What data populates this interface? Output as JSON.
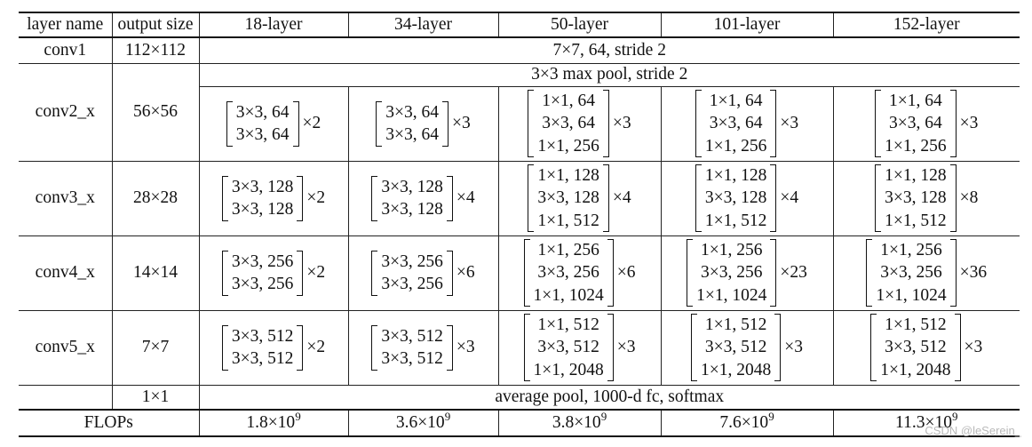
{
  "headers": [
    "layer name",
    "output size",
    "18-layer",
    "34-layer",
    "50-layer",
    "101-layer",
    "152-layer"
  ],
  "conv1": {
    "name": "conv1",
    "output": "112×112",
    "spec": "7×7, 64, stride 2"
  },
  "pool": {
    "spec": "3×3 max pool, stride 2"
  },
  "stages": [
    {
      "name": "conv2_x",
      "output": "56×56",
      "blocks": [
        {
          "lines": [
            "3×3, 64",
            "3×3, 64"
          ],
          "mult": "×2"
        },
        {
          "lines": [
            "3×3, 64",
            "3×3, 64"
          ],
          "mult": "×3"
        },
        {
          "lines": [
            "1×1, 64",
            "3×3, 64",
            "1×1, 256"
          ],
          "mult": "×3"
        },
        {
          "lines": [
            "1×1, 64",
            "3×3, 64",
            "1×1, 256"
          ],
          "mult": "×3"
        },
        {
          "lines": [
            "1×1, 64",
            "3×3, 64",
            "1×1, 256"
          ],
          "mult": "×3"
        }
      ]
    },
    {
      "name": "conv3_x",
      "output": "28×28",
      "blocks": [
        {
          "lines": [
            "3×3, 128",
            "3×3, 128"
          ],
          "mult": "×2"
        },
        {
          "lines": [
            "3×3, 128",
            "3×3, 128"
          ],
          "mult": "×4"
        },
        {
          "lines": [
            "1×1, 128",
            "3×3, 128",
            "1×1, 512"
          ],
          "mult": "×4"
        },
        {
          "lines": [
            "1×1, 128",
            "3×3, 128",
            "1×1, 512"
          ],
          "mult": "×4"
        },
        {
          "lines": [
            "1×1, 128",
            "3×3, 128",
            "1×1, 512"
          ],
          "mult": "×8"
        }
      ]
    },
    {
      "name": "conv4_x",
      "output": "14×14",
      "blocks": [
        {
          "lines": [
            "3×3, 256",
            "3×3, 256"
          ],
          "mult": "×2"
        },
        {
          "lines": [
            "3×3, 256",
            "3×3, 256"
          ],
          "mult": "×6"
        },
        {
          "lines": [
            "1×1, 256",
            "3×3, 256",
            "1×1, 1024"
          ],
          "mult": "×6"
        },
        {
          "lines": [
            "1×1, 256",
            "3×3, 256",
            "1×1, 1024"
          ],
          "mult": "×23"
        },
        {
          "lines": [
            "1×1, 256",
            "3×3, 256",
            "1×1, 1024"
          ],
          "mult": "×36"
        }
      ]
    },
    {
      "name": "conv5_x",
      "output": "7×7",
      "blocks": [
        {
          "lines": [
            "3×3, 512",
            "3×3, 512"
          ],
          "mult": "×2"
        },
        {
          "lines": [
            "3×3, 512",
            "3×3, 512"
          ],
          "mult": "×3"
        },
        {
          "lines": [
            "1×1, 512",
            "3×3, 512",
            "1×1, 2048"
          ],
          "mult": "×3"
        },
        {
          "lines": [
            "1×1, 512",
            "3×3, 512",
            "1×1, 2048"
          ],
          "mult": "×3"
        },
        {
          "lines": [
            "1×1, 512",
            "3×3, 512",
            "1×1, 2048"
          ],
          "mult": "×3"
        }
      ]
    }
  ],
  "avg": {
    "output": "1×1",
    "spec": "average pool, 1000-d fc, softmax"
  },
  "flops": {
    "label": "FLOPs",
    "values": [
      {
        "base": "1.8×10",
        "exp": "9"
      },
      {
        "base": "3.6×10",
        "exp": "9"
      },
      {
        "base": "3.8×10",
        "exp": "9"
      },
      {
        "base": "7.6×10",
        "exp": "9"
      },
      {
        "base": "11.3×10",
        "exp": "9"
      }
    ]
  },
  "watermark": "CSDN @leSerein_"
}
